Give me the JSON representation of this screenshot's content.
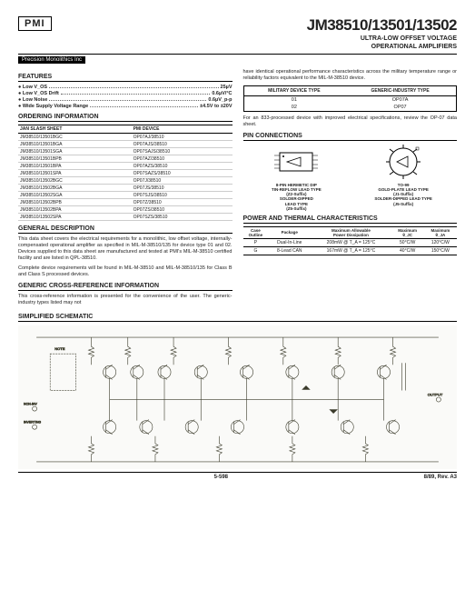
{
  "header": {
    "logo": "PMI",
    "part_number": "JM38510/13501/13502",
    "subtitle_line1": "ULTRA-LOW OFFSET VOLTAGE",
    "subtitle_line2": "OPERATIONAL AMPLIFIERS",
    "company": "Precision Monolithics Inc"
  },
  "features": {
    "title": "FEATURES",
    "items": [
      {
        "label": "● Low V_OS",
        "value": "25µV"
      },
      {
        "label": "● Low V_OS Drift",
        "value": "0.6µV/°C"
      },
      {
        "label": "● Low Noise",
        "value": "0.6µV_p-p"
      },
      {
        "label": "● Wide Supply Voltage Range",
        "value": "±4.5V to ±20V"
      }
    ]
  },
  "ordering": {
    "title": "ORDERING INFORMATION",
    "col1": "JAN SLASH SHEET",
    "col2": "PMI DEVICE",
    "row_font_size": 5,
    "rows": [
      [
        "JM38510/13501BGC",
        "OP07AJ/38510"
      ],
      [
        "JM38510/13501BGA",
        "OP07AJS/38510"
      ],
      [
        "JM38510/13501SGA",
        "OP07SAJS/38510"
      ],
      [
        "JM38510/13501BPB",
        "OP07AZ/38510"
      ],
      [
        "JM38510/13501BPA",
        "OP07AZS/38510"
      ],
      [
        "JM38510/13501SPA",
        "OP07SAZS/38510"
      ],
      [
        "JM38510/13502BGC",
        "OP07J/38510"
      ],
      [
        "JM38510/13502BGA",
        "OP07JS/38510"
      ],
      [
        "JM38510/13502SGA",
        "OP07SJS/38510"
      ],
      [
        "JM38510/13502BPB",
        "OP07Z/38510"
      ],
      [
        "JM38510/13502BPA",
        "OP07ZS/38510"
      ],
      [
        "JM38510/13502SPA",
        "OP07SZS/38510"
      ]
    ]
  },
  "general": {
    "title": "GENERAL DESCRIPTION",
    "p1": "This data sheet covers the electrical requirements for a monolithic, low offset voltage, internally-compensated operational amplifier as specified in MIL-M-38510/135 for device type 01 and 02. Devices supplied to this data sheet are manufactured and tested at PMI's MIL-M-38510 certified facility and are listed in QPL-38510.",
    "p2": "Complete device requirements will be found in MIL-M-38510 and MIL-M-38510/135 for Class B and Class S processed devices."
  },
  "crossref": {
    "title": "GENERIC CROSS-REFERENCE INFORMATION",
    "p1": "This cross-reference information is presented for the convenience of the user. The generic-industry types listed may not"
  },
  "right_intro": "have identical operational performance characteristics across the military temperature range or reliability factors equivalent to the MIL-M-38510 device.",
  "military": {
    "col1": "MILITARY DEVICE TYPE",
    "col2": "GENERIC-INDUSTRY TYPE",
    "rows": [
      [
        "01",
        "OP07A"
      ],
      [
        "02",
        "OP07"
      ]
    ]
  },
  "right_note": "For an 833-processed device with improved electrical specifications, review the OP-07 data sheet.",
  "pin": {
    "title": "PIN CONNECTIONS",
    "dip_label": "8-PIN HERMETIC DIP\nTIN-REFLOW LEAD TYPE\n(Z2-Suffix)\nSOLDER-DIPPED\nLEAD TYPE\n(Z5-Suffix)",
    "can_label": "TO-99\nGOLD-PLATE LEAD TYPE\n(J1-Suffix)\nSOLDER-DIPPED LEAD TYPE\n(J5-Suffix)"
  },
  "thermal": {
    "title": "POWER AND THERMAL CHARACTERISTICS",
    "h1": "Case\nOutline",
    "h2": "Package",
    "h3": "Maximum Allowable\nPower Dissipation",
    "h4": "Maximum\nθ_JC",
    "h5": "Maximum\nθ_JA",
    "rows": [
      [
        "P",
        "Dual-In-Line",
        "208mW @ T_A = 125°C",
        "50°C/W",
        "120°C/W"
      ],
      [
        "G",
        "8-Lead CAN",
        "167mW @ T_A = 125°C",
        "40°C/W",
        "150°C/W"
      ]
    ]
  },
  "schematic_title": "SIMPLIFIED SCHEMATIC",
  "footer": {
    "page": "5-598",
    "rev": "8/89, Rev. A3"
  }
}
